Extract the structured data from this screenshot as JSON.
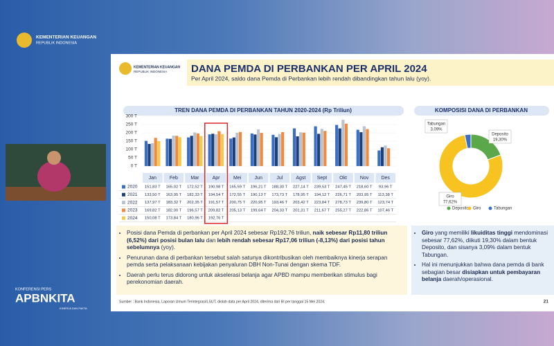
{
  "header": {
    "ministry": "KEMENTERIAN KEUANGAN",
    "republic": "REPUBLIK INDONESIA"
  },
  "event": {
    "label": "KONFERENSI PERS",
    "brand": "APBNKITA",
    "tagline": "KINERJA DAN FAKTA"
  },
  "slide": {
    "logo_ministry": "KEMENTERIAN KEUANGAN",
    "logo_republic": "REPUBLIK INDONESIA",
    "title": "DANA PEMDA DI PERBANKAN PER APRIL 2024",
    "subtitle": "Per April 2024, saldo dana Pemda di Perbankan lebih rendah dibandingkan tahun lalu (yoy).",
    "left_bullets": [
      [
        "Posisi dana Pemda di perbankan per April 2024 sebesar Rp192,76 triliun, ",
        {
          "text": "naik sebesar Rp11,80 triliun (6,52%) dari posisi bulan lalu",
          "bold": true
        },
        " dan ",
        {
          "text": "lebih rendah  sebesar Rp17,06 triliun (-8,13%) dari posisi tahun sebelumnya",
          "bold": true
        },
        " (yoy)."
      ],
      [
        "Penurunan dana di perbankan tersebut salah satunya dikontribusikan oleh membaiknya kinerja serapan pemda serta pelaksanaan kebijakan penyaluran DBH Non-Tunai dengan skema TDF."
      ],
      [
        "Daerah perlu terus didorong untuk akselerasi belanja agar APBD mampu memberikan stimulus bagi perekonomian daerah."
      ]
    ],
    "right_bullets": [
      [
        {
          "text": "Giro",
          "bold": true
        },
        " yang memiliki ",
        {
          "text": "likuiditas tinggi",
          "bold": true
        },
        " mendominasi sebesar 77,62%, diikuti 19,30% dalam bentuk Deposito, dan sisanya 3,09% dalam bentuk Tabungan."
      ],
      [
        "Hal ini menunjukkan bahwa dana pemda di bank sebagian besar ",
        {
          "text": "disiapkan untuk pembayaran belanja",
          "bold": true
        },
        " daerah/operasional."
      ]
    ],
    "source": "Sumber : Bank Indonesia, Laporan Umum Terintegrasi/LSUT, diolah data per April 2024, diterima dari BI per tanggal 15 Mei 2024.",
    "page": "21"
  },
  "chart_data": [
    {
      "type": "bar",
      "title": "TREN DANA PEMDA DI PERBANKAN TAHUN 2020-2024 (Rp Triliun)",
      "categories": [
        "Jan",
        "Feb",
        "Mar",
        "Apr",
        "Mei",
        "Jun",
        "Jul",
        "Agst",
        "Sept",
        "Okt",
        "Nov",
        "Des"
      ],
      "ylim": [
        0,
        300
      ],
      "yticks": [
        {
          "value": 0,
          "label": "0 T"
        },
        {
          "value": 50,
          "label": "50 T"
        },
        {
          "value": 100,
          "label": "100 T"
        },
        {
          "value": 150,
          "label": "150 T"
        },
        {
          "value": 200,
          "label": "200 T"
        },
        {
          "value": 250,
          "label": "250 T"
        },
        {
          "value": 300,
          "label": "300 T"
        }
      ],
      "series": [
        {
          "name": "2020",
          "color": "#3a6fc4",
          "values": [
            151.83,
            165.02,
            172.52,
            190.98,
            165.59,
            196.21,
            188.3,
            227.14,
            239.53,
            247.45,
            218.6,
            93.96
          ],
          "value_labels": [
            "151,83 T",
            "165,02 T",
            "172,52 T",
            "190,98 T",
            "165,59 T",
            "196,21 T",
            "188,30 T",
            "227,14 T",
            "239,53 T",
            "247,45 T",
            "218,60 T",
            "93,96 T"
          ]
        },
        {
          "name": "2021",
          "color": "#1d3f7a",
          "values": [
            133.5,
            163.95,
            182.33,
            194.54,
            172.55,
            190.13,
            173.73,
            178.95,
            194.12,
            226.71,
            203.95,
            113.38
          ],
          "value_labels": [
            "133,50 T",
            "163,95 T",
            "182,33 T",
            "194,54 T",
            "172,55 T",
            "190,13 T",
            "173,73 T",
            "178,95 T",
            "194,12 T",
            "226,71 T",
            "203,95 T",
            "113,38 T"
          ]
        },
        {
          "name": "2022",
          "color": "#b9c2cf",
          "values": [
            137.97,
            183.32,
            202.35,
            191.57,
            200.75,
            220.95,
            193.46,
            203.42,
            223.84,
            278.73,
            239.8,
            123.74
          ],
          "value_labels": [
            "137,97 T",
            "183,32 T",
            "202,35 T",
            "191,57 T",
            "200,75 T",
            "220,95 T",
            "193,46 T",
            "203,42 T",
            "223,84 T",
            "278,73 T",
            "239,80 T",
            "123,74 T"
          ]
        },
        {
          "name": "2023",
          "color": "#ef8a3e",
          "values": [
            169.82,
            182.0,
            196.57,
            209.82,
            205.13,
            199.64,
            204.33,
            201.31,
            211.67,
            255.27,
            222.86,
            107.46
          ],
          "value_labels": [
            "169,82 T",
            "182,00 T",
            "196,57 T",
            "209,82 T",
            "205,13 T",
            "199,64 T",
            "204,33 T",
            "201,31 T",
            "211,67 T",
            "255,27 T",
            "222,86 T",
            "107,46 T"
          ]
        },
        {
          "name": "2024",
          "color": "#f6c94a",
          "values": [
            150.08,
            173.84,
            180.96,
            192.76,
            null,
            null,
            null,
            null,
            null,
            null,
            null,
            null
          ],
          "value_labels": [
            "150,08 T",
            "173,84 T",
            "180,96 T",
            "192,76 T",
            null,
            null,
            null,
            null,
            null,
            null,
            null,
            null
          ]
        }
      ]
    },
    {
      "type": "pie",
      "title": "KOMPOSISI DANA DI PERBANKAN",
      "categories": [
        "Deposito",
        "Giro",
        "Tabungan"
      ],
      "values": [
        19.3,
        77.62,
        3.09
      ],
      "value_labels": [
        "19,30%",
        "77,62%",
        "3,09%"
      ],
      "colors": [
        "#5aa84a",
        "#f6c320",
        "#3b6fc4"
      ]
    }
  ]
}
